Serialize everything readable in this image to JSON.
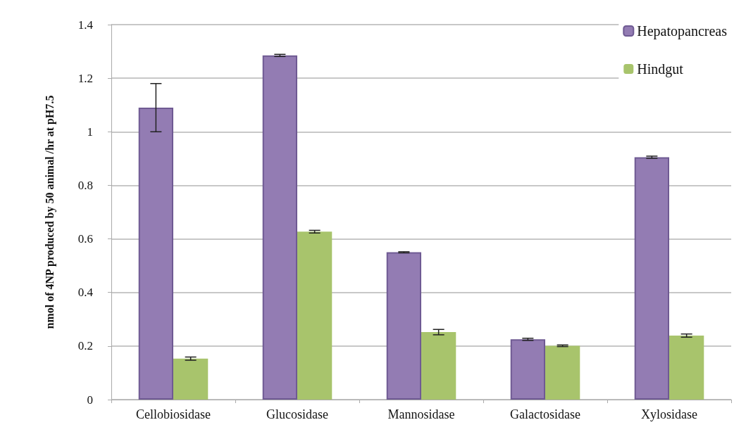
{
  "chart_data": {
    "type": "bar",
    "ylabel": "nmol of 4NP produced by 50 animal /hr at pH7.5",
    "categories": [
      "Cellobiosidase",
      "Glucosidase",
      "Mannosidase",
      "Galactosidase",
      "Xylosidase"
    ],
    "series": [
      {
        "name": "Hepatopancreas",
        "color": "#937cb3",
        "values": [
          1.09,
          1.285,
          0.55,
          0.225,
          0.905
        ],
        "errors": [
          0.09,
          0.004,
          0.002,
          0.004,
          0.004
        ]
      },
      {
        "name": "Hindgut",
        "color": "#a8c46c",
        "values": [
          0.153,
          0.627,
          0.252,
          0.201,
          0.239
        ],
        "errors": [
          0.006,
          0.005,
          0.01,
          0.003,
          0.006
        ]
      }
    ],
    "ylim": [
      0,
      1.4
    ],
    "yticks": [
      0,
      0.2,
      0.4,
      0.6,
      0.8,
      1,
      1.2,
      1.4
    ],
    "grid": "y",
    "legend": "top right"
  }
}
